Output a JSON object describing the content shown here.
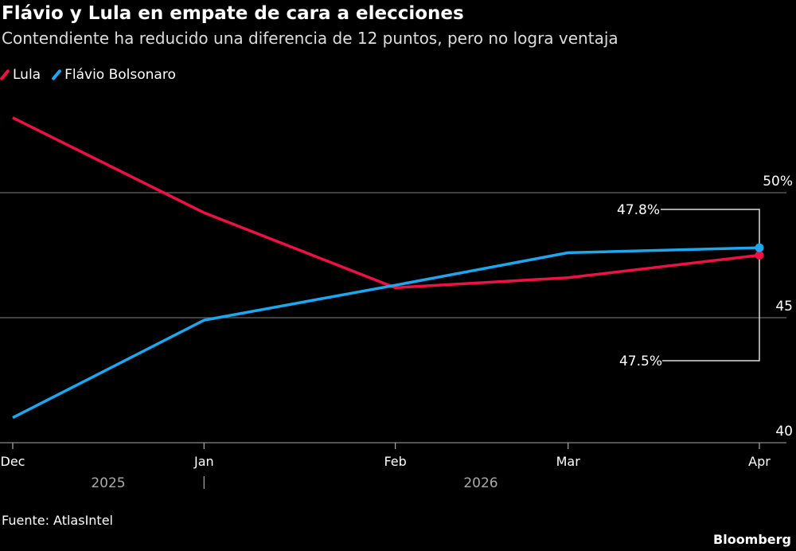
{
  "header": {
    "title": "Flávio y Lula en empate de cara a elecciones",
    "subtitle": "Contendiente ha reducido una diferencia de 12 puntos, pero no logra ventaja"
  },
  "footer": {
    "source": "Fuente: AtlasIntel",
    "brand": "Bloomberg"
  },
  "chart_data": {
    "type": "line",
    "title": "Flávio y Lula en empate de cara a elecciones",
    "subtitle": "Contendiente ha reducido una diferencia de 12 puntos, pero no logra ventaja",
    "x": [
      "2025-12-01",
      "2026-01-01",
      "2026-02-01",
      "2026-03-01",
      "2026-04-01"
    ],
    "x_tick_labels": [
      "Dec",
      "Jan",
      "Feb",
      "Mar",
      "Apr"
    ],
    "year_labels": [
      "2025",
      "2026"
    ],
    "y_ticks": [
      40,
      45,
      50
    ],
    "y_tick_labels": [
      "40",
      "45",
      "50%"
    ],
    "ylim": [
      40,
      53.6
    ],
    "y_axis_position": "right",
    "grid": true,
    "legend_position": "top-left",
    "series": [
      {
        "name": "Lula",
        "color": "#ee1144",
        "values": [
          53.0,
          49.2,
          46.2,
          46.6,
          47.5
        ]
      },
      {
        "name": "Flávio Bolsonaro",
        "color": "#1ea7ee",
        "values": [
          41.0,
          44.9,
          46.3,
          47.6,
          47.8
        ]
      }
    ],
    "annotations": [
      {
        "text": "47.8%",
        "series": "Flávio Bolsonaro",
        "value": 47.8
      },
      {
        "text": "47.5%",
        "series": "Lula",
        "value": 47.5
      }
    ]
  }
}
